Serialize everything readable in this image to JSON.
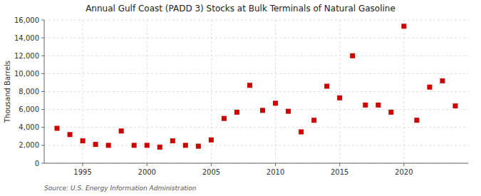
{
  "chart_data": {
    "type": "scatter",
    "title": "Annual Gulf Coast (PADD 3) Stocks at Bulk Terminals of Natural Gasoline",
    "y_label": "Thousand Barrels",
    "annotations": [
      "Source: U.S. Energy Information Administration"
    ],
    "color": "#cc0000",
    "marker": "square",
    "grid": true,
    "x": [
      1993,
      1994,
      1995,
      1996,
      1997,
      1998,
      1999,
      2000,
      2001,
      2002,
      2003,
      2004,
      2005,
      2006,
      2007,
      2008,
      2009,
      2010,
      2011,
      2012,
      2013,
      2014,
      2015,
      2016,
      2017,
      2018,
      2019,
      2020,
      2021,
      2022,
      2023,
      2024
    ],
    "values": [
      3900,
      3200,
      2500,
      2100,
      2000,
      3600,
      2000,
      2000,
      1800,
      2500,
      2000,
      1900,
      2600,
      5000,
      5700,
      8700,
      5900,
      6700,
      5800,
      3500,
      4800,
      8600,
      7300,
      12000,
      6500,
      6500,
      5700,
      15300,
      4800,
      8500,
      9200,
      6400
    ],
    "xlim": [
      1992,
      2025
    ],
    "xticks": [
      1995,
      2000,
      2005,
      2010,
      2015,
      2020
    ],
    "ylim": [
      0,
      16000
    ],
    "yticks": [
      0,
      {
        "value": 2000,
        "label": "2,000"
      },
      {
        "value": 4000,
        "label": "4,000"
      },
      {
        "value": 6000,
        "label": "6,000"
      },
      {
        "value": 8000,
        "label": "8,000"
      },
      {
        "value": 10000,
        "label": "10,000"
      },
      {
        "value": 12000,
        "label": "12,000"
      },
      {
        "value": 14000,
        "label": "14,000"
      },
      {
        "value": 16000,
        "label": "16,000"
      }
    ]
  }
}
